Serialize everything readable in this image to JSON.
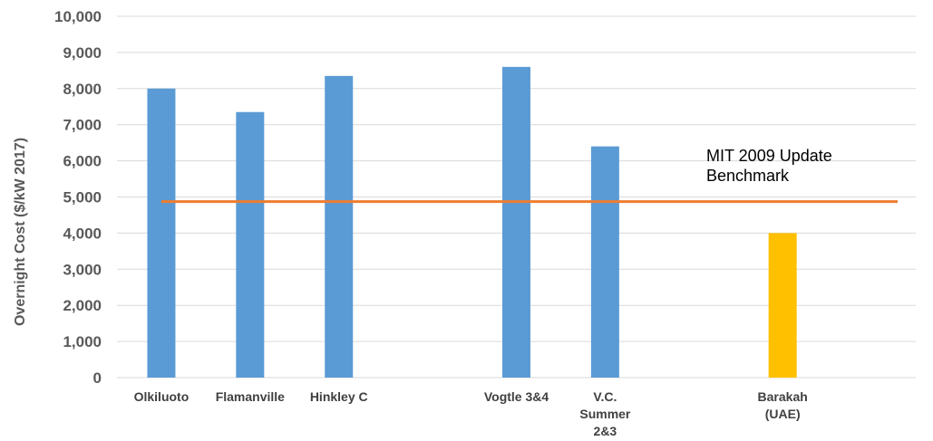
{
  "chart_data": {
    "type": "bar",
    "categories": [
      "Olkiluoto",
      "Flamanville",
      "Hinkley C",
      "",
      "Vogtle 3&4",
      "V.C.\nSummer\n2&3",
      "",
      "Barakah\n(UAE)",
      ""
    ],
    "values": [
      8000,
      7350,
      8350,
      null,
      8600,
      6400,
      null,
      4000,
      null
    ],
    "bar_colors": [
      "#5b9bd5",
      "#5b9bd5",
      "#5b9bd5",
      null,
      "#5b9bd5",
      "#5b9bd5",
      null,
      "#ffc000",
      null
    ],
    "ylabel": "Overnight Cost ($/kW 2017)",
    "xlabel": "",
    "ylim": [
      0,
      10000
    ],
    "yticks": [
      "0",
      "1,000",
      "2,000",
      "3,000",
      "4,000",
      "5,000",
      "6,000",
      "7,000",
      "8,000",
      "9,000",
      "10,000"
    ],
    "grid": true,
    "benchmark": {
      "value": 4870,
      "color": "#ed7d31",
      "label_lines": [
        "MIT 2009 Update",
        "Benchmark"
      ]
    }
  }
}
